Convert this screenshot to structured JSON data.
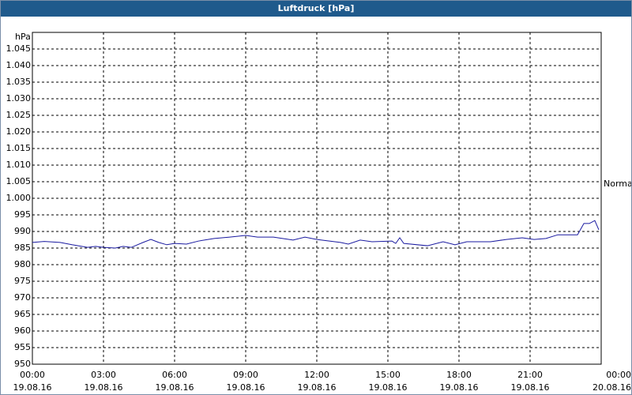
{
  "chart_data": {
    "type": "line",
    "title": "Luftdruck [hPa]",
    "y_label": "hPa",
    "annotation": "Normal",
    "x": [
      0,
      0.5,
      1.17,
      1.67,
      2.33,
      2.67,
      3,
      3.5,
      3.83,
      4.17,
      4.67,
      5,
      5.33,
      5.67,
      6,
      6.5,
      7,
      7.67,
      8.33,
      9,
      9.5,
      10.17,
      11,
      11.5,
      12,
      13,
      13.33,
      13.83,
      14.33,
      15.17,
      15.33,
      15.5,
      15.67,
      16.67,
      17.33,
      17.83,
      18.33,
      19.33,
      20,
      20.67,
      21.17,
      21.67,
      22.17,
      23,
      23.27,
      23.5,
      23.73,
      23.9
    ],
    "values": [
      986.7,
      987,
      986.7,
      986,
      985.2,
      985.5,
      985.2,
      985,
      985.5,
      985.2,
      986.7,
      987.6,
      986.7,
      986,
      986.4,
      986.2,
      987.1,
      987.9,
      988.3,
      988.8,
      988.3,
      988.3,
      987.4,
      988.3,
      987.6,
      986.7,
      986.2,
      987.4,
      986.9,
      987.1,
      986.4,
      988.1,
      986.4,
      985.7,
      986.9,
      986,
      986.9,
      986.9,
      987.6,
      988.1,
      987.6,
      987.9,
      989,
      989,
      992.4,
      992.4,
      993.3,
      990.5
    ],
    "color": "#1a1aa0",
    "xlim": [
      0,
      24
    ],
    "xticks": [
      {
        "value": 0,
        "label": "00:00\n19.08.16"
      },
      {
        "value": 3,
        "label": "03:00\n19.08.16"
      },
      {
        "value": 6,
        "label": "06:00\n19.08.16"
      },
      {
        "value": 9,
        "label": "09:00\n19.08.16"
      },
      {
        "value": 12,
        "label": "12:00\n19.08.16"
      },
      {
        "value": 15,
        "label": "15:00\n19.08.16"
      },
      {
        "value": 18,
        "label": "18:00\n19.08.16"
      },
      {
        "value": 21,
        "label": "21:00\n19.08.16"
      },
      {
        "value": 24,
        "label": "00:00\n20.08.16"
      }
    ],
    "ylim": [
      950,
      1050
    ],
    "yticks": [
      950,
      955,
      960,
      965,
      970,
      975,
      980,
      985,
      990,
      995,
      {
        "value": 1000,
        "label": "1.000"
      },
      {
        "value": 1005,
        "label": "1.005"
      },
      {
        "value": 1010,
        "label": "1.010"
      },
      {
        "value": 1015,
        "label": "1.015"
      },
      {
        "value": 1020,
        "label": "1.020"
      },
      {
        "value": 1025,
        "label": "1.025"
      },
      {
        "value": 1030,
        "label": "1.030"
      },
      {
        "value": 1035,
        "label": "1.035"
      },
      {
        "value": 1040,
        "label": "1.040"
      },
      {
        "value": 1045,
        "label": "1.045"
      }
    ],
    "grid": true
  }
}
